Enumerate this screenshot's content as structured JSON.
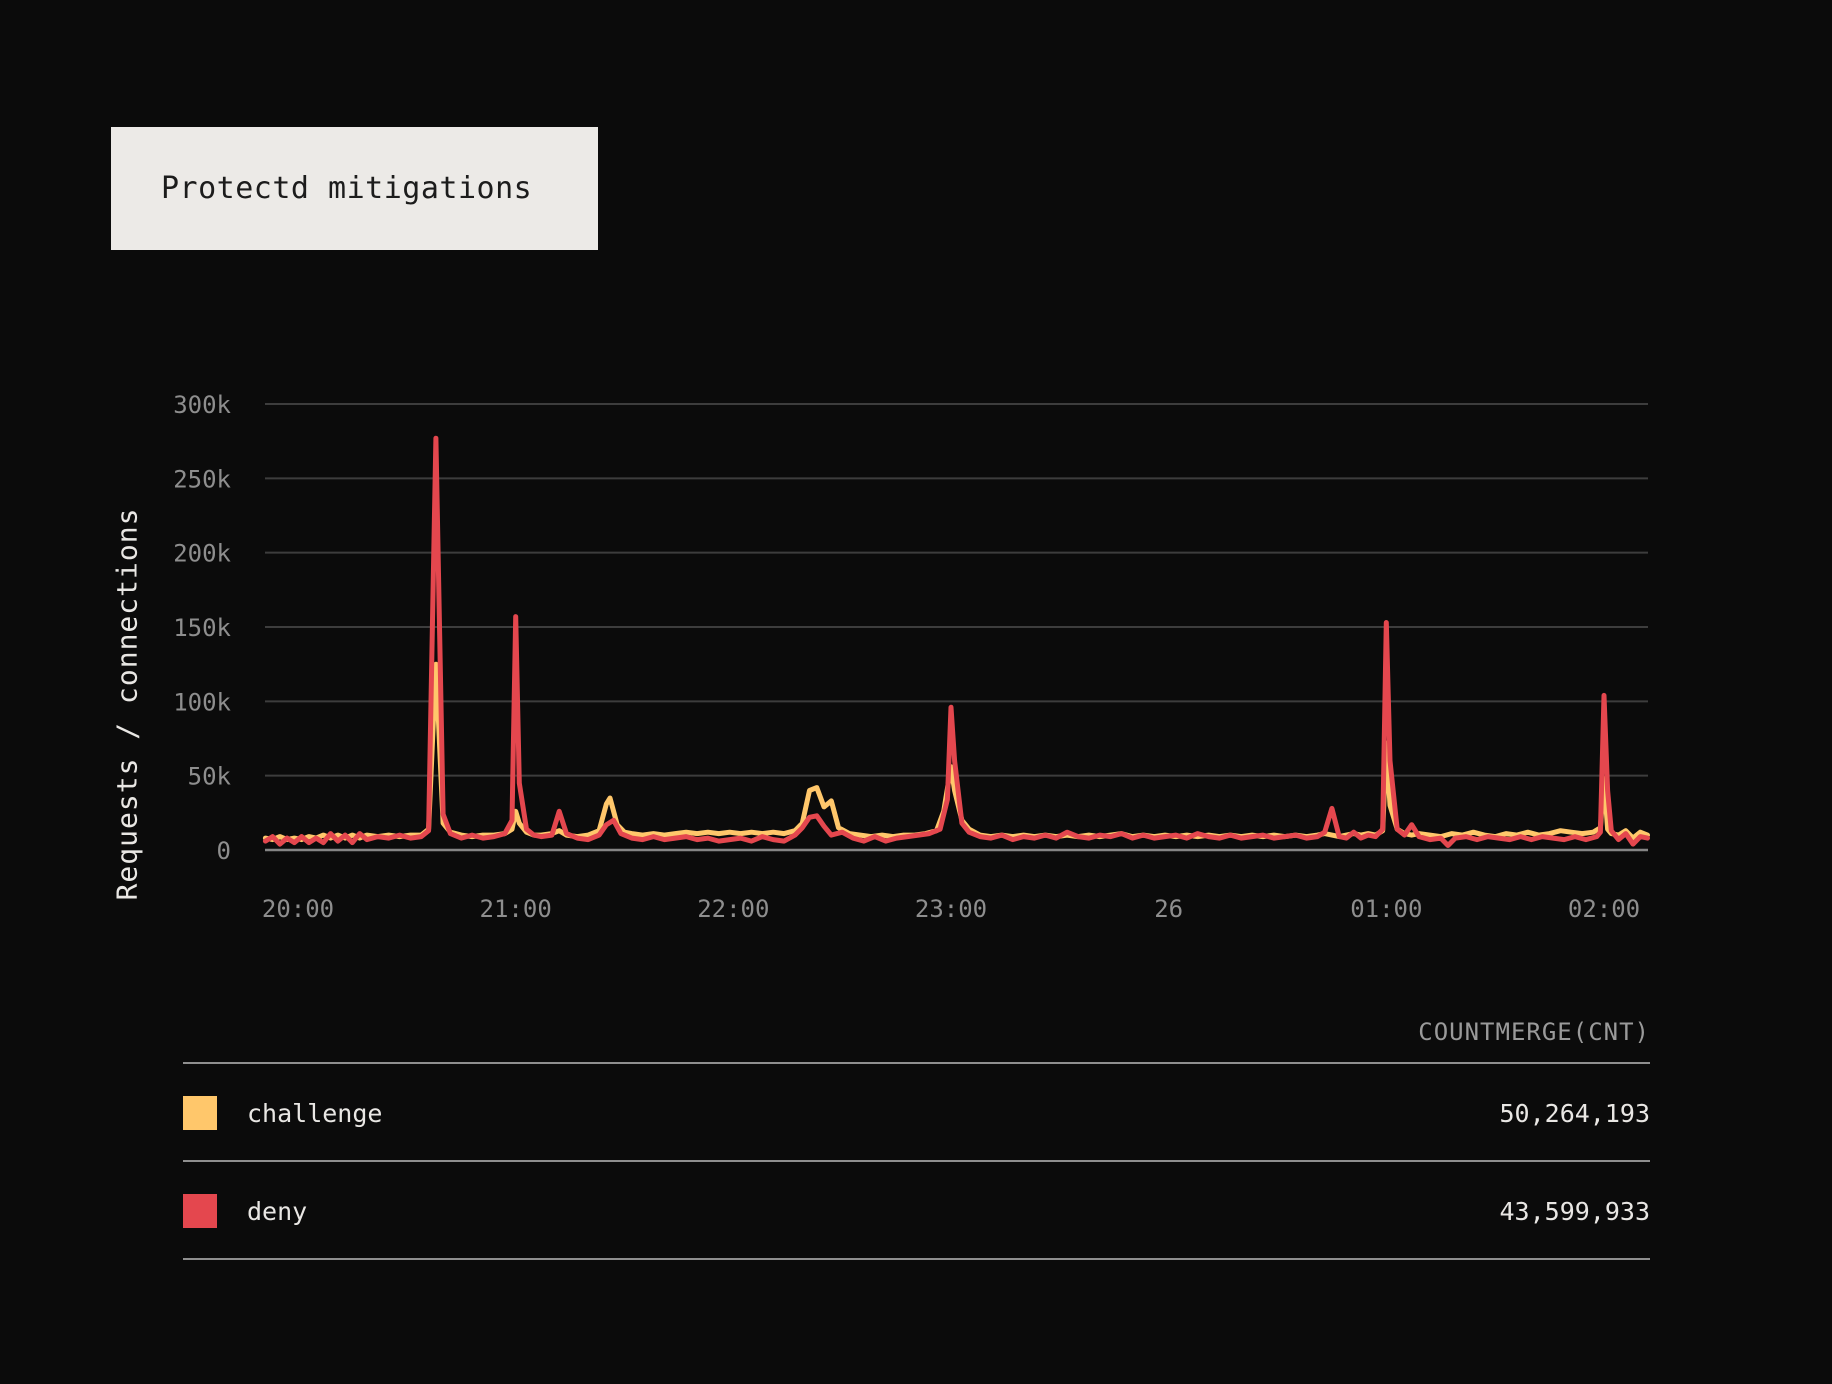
{
  "title": "Protectd mitigations",
  "colors": {
    "background": "#0b0b0b",
    "title_bg": "#eceae7",
    "title_text": "#1c1c1c",
    "grid": "#3d3d3d",
    "axis_line": "#858585",
    "tick_text": "#8e8e8e",
    "axis_title_text": "#e9e7e4",
    "legend_text": "#e9e7e4",
    "legend_header_text": "#9a9a9a",
    "legend_rule": "#8f8f8f",
    "challenge": "#ffc76b",
    "deny": "#e4474e"
  },
  "axis": {
    "y_title": "Requests / connections"
  },
  "legend": {
    "header": "COUNTMERGE(CNT)",
    "rows": [
      {
        "label": "challenge",
        "value": "50,264,193",
        "color_key": "challenge"
      },
      {
        "label": "deny",
        "value": "43,599,933",
        "color_key": "deny"
      }
    ]
  },
  "chart_data": {
    "type": "line",
    "title": "Protectd mitigations",
    "xlabel": "",
    "ylabel": "Requests / connections",
    "ylim": [
      0,
      300000
    ],
    "grid": true,
    "legend_position": "bottom-table",
    "x_axis_note": "time of day; tick '26' marks midnight starting day 26",
    "x_range_minutes_rel_2000": [
      -9,
      372
    ],
    "y_ticks": [
      {
        "value": 300000,
        "label": "300k"
      },
      {
        "value": 250000,
        "label": "250k"
      },
      {
        "value": 200000,
        "label": "200k"
      },
      {
        "value": 150000,
        "label": "150k"
      },
      {
        "value": 100000,
        "label": "100k"
      },
      {
        "value": 50000,
        "label": "50k"
      },
      {
        "value": 0,
        "label": "0"
      }
    ],
    "x_ticks": [
      {
        "minutes": 0,
        "label": "20:00"
      },
      {
        "minutes": 60,
        "label": "21:00"
      },
      {
        "minutes": 120,
        "label": "22:00"
      },
      {
        "minutes": 180,
        "label": "23:00"
      },
      {
        "minutes": 240,
        "label": "26"
      },
      {
        "minutes": 300,
        "label": "01:00"
      },
      {
        "minutes": 360,
        "label": "02:00"
      }
    ],
    "values_unit": "thousands of requests/connections",
    "series": [
      {
        "name": "challenge",
        "color_key": "challenge",
        "total": "50,264,193",
        "points": [
          [
            -9,
            8
          ],
          [
            -7,
            7
          ],
          [
            -5,
            9
          ],
          [
            -3,
            7
          ],
          [
            -1,
            8
          ],
          [
            1,
            7
          ],
          [
            3,
            9
          ],
          [
            5,
            8
          ],
          [
            7,
            10
          ],
          [
            9,
            8
          ],
          [
            11,
            10
          ],
          [
            13,
            8
          ],
          [
            15,
            10
          ],
          [
            17,
            8
          ],
          [
            19,
            10
          ],
          [
            22,
            9
          ],
          [
            25,
            10
          ],
          [
            28,
            9
          ],
          [
            31,
            10
          ],
          [
            34,
            10
          ],
          [
            36,
            14
          ],
          [
            38,
            125
          ],
          [
            40,
            18
          ],
          [
            42,
            12
          ],
          [
            45,
            10
          ],
          [
            48,
            9
          ],
          [
            51,
            10
          ],
          [
            54,
            10
          ],
          [
            57,
            11
          ],
          [
            59,
            14
          ],
          [
            60,
            26
          ],
          [
            61,
            18
          ],
          [
            63,
            12
          ],
          [
            65,
            10
          ],
          [
            67,
            10
          ],
          [
            70,
            11
          ],
          [
            72,
            13
          ],
          [
            74,
            10
          ],
          [
            77,
            9
          ],
          [
            80,
            10
          ],
          [
            83,
            13
          ],
          [
            85,
            31
          ],
          [
            86,
            35
          ],
          [
            88,
            17
          ],
          [
            90,
            12
          ],
          [
            92,
            11
          ],
          [
            95,
            10
          ],
          [
            98,
            11
          ],
          [
            101,
            10
          ],
          [
            104,
            11
          ],
          [
            107,
            12
          ],
          [
            110,
            11
          ],
          [
            113,
            12
          ],
          [
            116,
            11
          ],
          [
            119,
            12
          ],
          [
            122,
            11
          ],
          [
            125,
            12
          ],
          [
            128,
            11
          ],
          [
            131,
            12
          ],
          [
            134,
            11
          ],
          [
            137,
            13
          ],
          [
            139,
            18
          ],
          [
            141,
            40
          ],
          [
            143,
            42
          ],
          [
            145,
            29
          ],
          [
            147,
            33
          ],
          [
            149,
            15
          ],
          [
            152,
            11
          ],
          [
            155,
            10
          ],
          [
            158,
            9
          ],
          [
            161,
            10
          ],
          [
            164,
            9
          ],
          [
            167,
            10
          ],
          [
            170,
            10
          ],
          [
            173,
            11
          ],
          [
            176,
            13
          ],
          [
            178,
            26
          ],
          [
            180,
            56
          ],
          [
            181,
            40
          ],
          [
            183,
            20
          ],
          [
            185,
            14
          ],
          [
            188,
            10
          ],
          [
            191,
            9
          ],
          [
            194,
            10
          ],
          [
            197,
            9
          ],
          [
            200,
            10
          ],
          [
            203,
            9
          ],
          [
            206,
            10
          ],
          [
            209,
            9
          ],
          [
            212,
            10
          ],
          [
            215,
            9
          ],
          [
            218,
            10
          ],
          [
            221,
            9
          ],
          [
            224,
            10
          ],
          [
            227,
            11
          ],
          [
            230,
            9
          ],
          [
            233,
            10
          ],
          [
            236,
            9
          ],
          [
            239,
            10
          ],
          [
            242,
            9
          ],
          [
            245,
            10
          ],
          [
            248,
            9
          ],
          [
            251,
            10
          ],
          [
            254,
            9
          ],
          [
            257,
            10
          ],
          [
            260,
            9
          ],
          [
            263,
            10
          ],
          [
            266,
            9
          ],
          [
            269,
            10
          ],
          [
            272,
            9
          ],
          [
            275,
            10
          ],
          [
            278,
            9
          ],
          [
            281,
            10
          ],
          [
            283,
            11
          ],
          [
            285,
            10
          ],
          [
            287,
            9
          ],
          [
            289,
            10
          ],
          [
            291,
            11
          ],
          [
            293,
            10
          ],
          [
            295,
            11
          ],
          [
            297,
            10
          ],
          [
            299,
            13
          ],
          [
            300,
            72
          ],
          [
            301,
            30
          ],
          [
            303,
            14
          ],
          [
            305,
            11
          ],
          [
            307,
            10
          ],
          [
            309,
            11
          ],
          [
            312,
            10
          ],
          [
            315,
            9
          ],
          [
            318,
            11
          ],
          [
            321,
            10
          ],
          [
            324,
            12
          ],
          [
            327,
            10
          ],
          [
            330,
            9
          ],
          [
            333,
            11
          ],
          [
            336,
            10
          ],
          [
            339,
            12
          ],
          [
            342,
            10
          ],
          [
            345,
            11
          ],
          [
            348,
            13
          ],
          [
            351,
            12
          ],
          [
            354,
            11
          ],
          [
            357,
            12
          ],
          [
            359,
            15
          ],
          [
            360,
            48
          ],
          [
            361,
            14
          ],
          [
            362,
            11
          ],
          [
            364,
            10
          ],
          [
            366,
            13
          ],
          [
            368,
            8
          ],
          [
            370,
            12
          ],
          [
            372,
            10
          ]
        ]
      },
      {
        "name": "deny",
        "color_key": "deny",
        "total": "43,599,933",
        "points": [
          [
            -9,
            6
          ],
          [
            -7,
            9
          ],
          [
            -5,
            4
          ],
          [
            -3,
            8
          ],
          [
            -1,
            5
          ],
          [
            1,
            9
          ],
          [
            3,
            5
          ],
          [
            5,
            8
          ],
          [
            7,
            5
          ],
          [
            9,
            11
          ],
          [
            11,
            6
          ],
          [
            13,
            10
          ],
          [
            15,
            5
          ],
          [
            17,
            11
          ],
          [
            19,
            7
          ],
          [
            22,
            9
          ],
          [
            25,
            8
          ],
          [
            28,
            10
          ],
          [
            31,
            8
          ],
          [
            34,
            9
          ],
          [
            36,
            13
          ],
          [
            38,
            277
          ],
          [
            40,
            24
          ],
          [
            42,
            11
          ],
          [
            45,
            8
          ],
          [
            48,
            10
          ],
          [
            51,
            8
          ],
          [
            54,
            9
          ],
          [
            57,
            11
          ],
          [
            59,
            20
          ],
          [
            60,
            157
          ],
          [
            61,
            45
          ],
          [
            63,
            14
          ],
          [
            65,
            10
          ],
          [
            67,
            9
          ],
          [
            70,
            10
          ],
          [
            72,
            26
          ],
          [
            74,
            11
          ],
          [
            77,
            8
          ],
          [
            80,
            7
          ],
          [
            83,
            10
          ],
          [
            85,
            17
          ],
          [
            87,
            20
          ],
          [
            89,
            11
          ],
          [
            92,
            8
          ],
          [
            95,
            7
          ],
          [
            98,
            9
          ],
          [
            101,
            7
          ],
          [
            104,
            8
          ],
          [
            107,
            9
          ],
          [
            110,
            7
          ],
          [
            113,
            8
          ],
          [
            116,
            6
          ],
          [
            119,
            7
          ],
          [
            122,
            8
          ],
          [
            125,
            6
          ],
          [
            128,
            9
          ],
          [
            131,
            7
          ],
          [
            134,
            6
          ],
          [
            137,
            10
          ],
          [
            139,
            15
          ],
          [
            141,
            22
          ],
          [
            143,
            23
          ],
          [
            145,
            16
          ],
          [
            147,
            10
          ],
          [
            150,
            12
          ],
          [
            153,
            8
          ],
          [
            156,
            6
          ],
          [
            159,
            9
          ],
          [
            162,
            6
          ],
          [
            165,
            8
          ],
          [
            168,
            9
          ],
          [
            171,
            10
          ],
          [
            174,
            11
          ],
          [
            177,
            14
          ],
          [
            179,
            34
          ],
          [
            180,
            96
          ],
          [
            181,
            60
          ],
          [
            183,
            18
          ],
          [
            185,
            12
          ],
          [
            188,
            9
          ],
          [
            191,
            8
          ],
          [
            194,
            10
          ],
          [
            197,
            7
          ],
          [
            200,
            9
          ],
          [
            203,
            8
          ],
          [
            206,
            10
          ],
          [
            209,
            8
          ],
          [
            212,
            12
          ],
          [
            215,
            9
          ],
          [
            218,
            8
          ],
          [
            221,
            10
          ],
          [
            224,
            9
          ],
          [
            227,
            11
          ],
          [
            230,
            8
          ],
          [
            233,
            10
          ],
          [
            236,
            8
          ],
          [
            239,
            9
          ],
          [
            242,
            10
          ],
          [
            245,
            8
          ],
          [
            248,
            11
          ],
          [
            251,
            9
          ],
          [
            254,
            8
          ],
          [
            257,
            10
          ],
          [
            260,
            8
          ],
          [
            263,
            9
          ],
          [
            266,
            10
          ],
          [
            269,
            8
          ],
          [
            272,
            9
          ],
          [
            275,
            10
          ],
          [
            278,
            8
          ],
          [
            281,
            9
          ],
          [
            283,
            12
          ],
          [
            285,
            28
          ],
          [
            287,
            9
          ],
          [
            289,
            8
          ],
          [
            291,
            12
          ],
          [
            293,
            8
          ],
          [
            295,
            10
          ],
          [
            297,
            9
          ],
          [
            299,
            14
          ],
          [
            300,
            153
          ],
          [
            301,
            60
          ],
          [
            303,
            14
          ],
          [
            305,
            10
          ],
          [
            307,
            17
          ],
          [
            309,
            9
          ],
          [
            312,
            7
          ],
          [
            315,
            8
          ],
          [
            317,
            3
          ],
          [
            319,
            8
          ],
          [
            322,
            9
          ],
          [
            325,
            7
          ],
          [
            328,
            9
          ],
          [
            331,
            8
          ],
          [
            334,
            7
          ],
          [
            337,
            9
          ],
          [
            340,
            7
          ],
          [
            343,
            9
          ],
          [
            346,
            8
          ],
          [
            349,
            7
          ],
          [
            352,
            9
          ],
          [
            355,
            7
          ],
          [
            358,
            9
          ],
          [
            359,
            12
          ],
          [
            360,
            104
          ],
          [
            361,
            40
          ],
          [
            362,
            13
          ],
          [
            364,
            7
          ],
          [
            366,
            11
          ],
          [
            368,
            4
          ],
          [
            370,
            9
          ],
          [
            372,
            8
          ]
        ]
      }
    ]
  }
}
